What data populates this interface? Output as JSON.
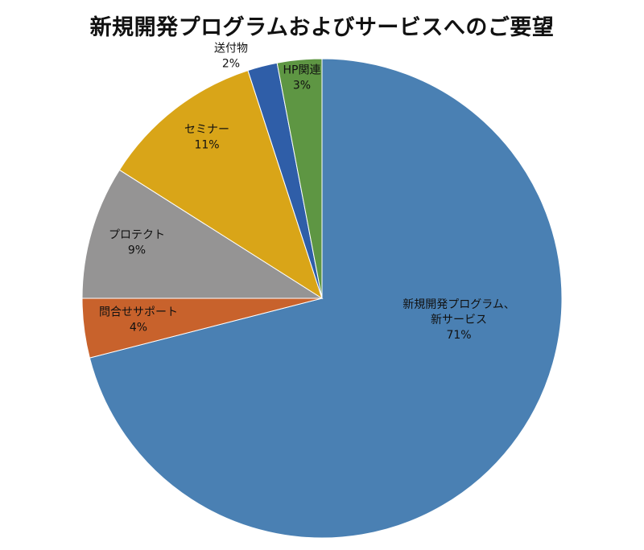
{
  "chart_data": {
    "type": "pie",
    "title": "新規開発プログラムおよびサービスへのご要望",
    "slices": [
      {
        "label_lines": [
          "新規開発プログラム、",
          "新サービス"
        ],
        "percent_label": "71%",
        "value": 71,
        "color": "#4a80b3"
      },
      {
        "label_lines": [
          "問合せサポート"
        ],
        "percent_label": "4%",
        "value": 4,
        "color": "#c8622c"
      },
      {
        "label_lines": [
          "プロテクト"
        ],
        "percent_label": "9%",
        "value": 9,
        "color": "#959494"
      },
      {
        "label_lines": [
          "セミナー"
        ],
        "percent_label": "11%",
        "value": 11,
        "color": "#d9a518"
      },
      {
        "label_lines": [
          "送付物"
        ],
        "percent_label": "2%",
        "value": 2,
        "color": "#2f5ea8"
      },
      {
        "label_lines": [
          "HP関連"
        ],
        "percent_label": "3%",
        "value": 3,
        "color": "#5e9643"
      }
    ]
  }
}
